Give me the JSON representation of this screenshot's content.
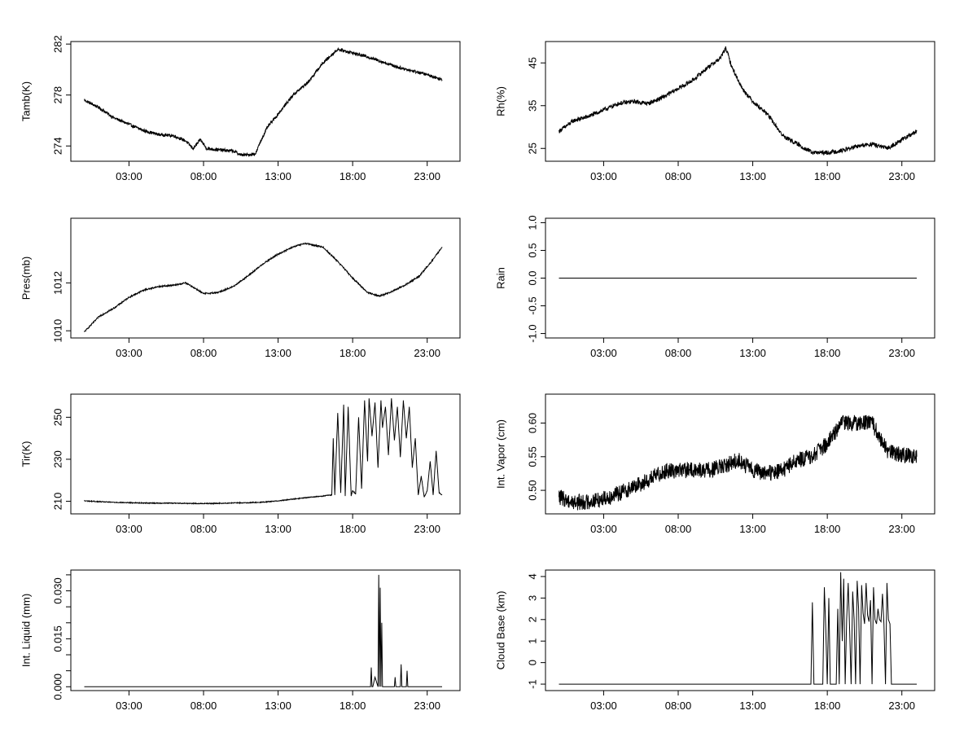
{
  "chart_data": [
    {
      "type": "line",
      "id": "tamb",
      "ylabel": "Tamb(K)",
      "x_tick_labels": [
        "03:00",
        "08:00",
        "13:00",
        "18:00",
        "23:00"
      ],
      "x_tick_hours": [
        3,
        8,
        13,
        18,
        23
      ],
      "xlim": [
        -0.9,
        25.2
      ],
      "ylim": [
        272.8,
        282.2
      ],
      "y_tick_values": [
        274,
        278,
        282
      ],
      "y_tick_labels": [
        "274",
        "278",
        "282"
      ],
      "noise": 0.12,
      "x": [
        0.0,
        1.0,
        2.0,
        3.0,
        4.0,
        5.0,
        6.0,
        6.8,
        7.3,
        7.8,
        8.2,
        9.0,
        10.0,
        10.5,
        11.0,
        11.5,
        11.8,
        12.3,
        13.0,
        14.0,
        15.0,
        16.0,
        17.0,
        18.0,
        19.0,
        20.0,
        21.0,
        22.0,
        23.0,
        24.0
      ],
      "y": [
        277.6,
        277.0,
        276.2,
        275.7,
        275.2,
        274.9,
        274.8,
        274.4,
        273.8,
        274.5,
        273.8,
        273.7,
        273.6,
        273.3,
        273.3,
        273.4,
        274.3,
        275.5,
        276.5,
        278.0,
        279.0,
        280.5,
        281.6,
        281.3,
        281.0,
        280.6,
        280.2,
        279.9,
        279.6,
        279.2
      ]
    },
    {
      "type": "line",
      "id": "rh",
      "ylabel": "Rh(%)",
      "x_tick_labels": [
        "03:00",
        "08:00",
        "13:00",
        "18:00",
        "23:00"
      ],
      "x_tick_hours": [
        3,
        8,
        13,
        18,
        23
      ],
      "xlim": [
        -0.9,
        25.2
      ],
      "ylim": [
        22,
        50
      ],
      "y_tick_values": [
        25,
        35,
        45
      ],
      "y_tick_labels": [
        "25",
        "35",
        "45"
      ],
      "noise": 0.5,
      "x": [
        0.0,
        1.0,
        2.0,
        3.0,
        4.0,
        5.0,
        6.0,
        7.0,
        8.0,
        9.0,
        10.0,
        10.8,
        11.2,
        11.6,
        12.3,
        13.0,
        14.0,
        15.0,
        16.0,
        17.0,
        18.0,
        19.0,
        20.0,
        21.0,
        22.0,
        23.0,
        24.0
      ],
      "y": [
        29.0,
        31.5,
        32.5,
        34.0,
        35.5,
        36.0,
        35.5,
        37.0,
        39.0,
        41.0,
        44.0,
        46.0,
        48.5,
        44.0,
        39.0,
        36.0,
        33.0,
        28.0,
        26.0,
        24.0,
        24.0,
        24.5,
        25.5,
        26.0,
        25.0,
        27.0,
        29.0
      ]
    },
    {
      "type": "line",
      "id": "pres",
      "ylabel": "Pres(mb)",
      "x_tick_labels": [
        "03:00",
        "08:00",
        "13:00",
        "18:00",
        "23:00"
      ],
      "x_tick_hours": [
        3,
        8,
        13,
        18,
        23
      ],
      "xlim": [
        -0.9,
        25.2
      ],
      "ylim": [
        1009.7,
        1014.7
      ],
      "y_tick_values": [
        1010,
        1012
      ],
      "y_tick_labels": [
        "1010",
        "1012"
      ],
      "noise": 0.03,
      "x": [
        0.0,
        1.0,
        2.0,
        3.0,
        4.0,
        5.0,
        6.0,
        6.8,
        7.5,
        8.0,
        9.0,
        10.0,
        11.0,
        12.0,
        13.0,
        14.0,
        14.8,
        16.0,
        17.0,
        18.0,
        19.0,
        19.8,
        20.5,
        21.5,
        22.5,
        23.3,
        24.0
      ],
      "y": [
        1009.95,
        1010.6,
        1010.95,
        1011.4,
        1011.7,
        1011.85,
        1011.9,
        1012.0,
        1011.75,
        1011.55,
        1011.6,
        1011.85,
        1012.3,
        1012.8,
        1013.2,
        1013.5,
        1013.65,
        1013.5,
        1012.9,
        1012.2,
        1011.6,
        1011.45,
        1011.6,
        1011.9,
        1012.3,
        1012.9,
        1013.5
      ]
    },
    {
      "type": "line",
      "id": "rain",
      "ylabel": "Rain",
      "x_tick_labels": [
        "03:00",
        "08:00",
        "13:00",
        "18:00",
        "23:00"
      ],
      "x_tick_hours": [
        3,
        8,
        13,
        18,
        23
      ],
      "xlim": [
        -0.9,
        25.2
      ],
      "ylim": [
        -1.08,
        1.08
      ],
      "y_tick_values": [
        -1.0,
        -0.5,
        0.0,
        0.5,
        1.0
      ],
      "y_tick_labels": [
        "-1.0",
        "-0.5",
        "0.0",
        "0.5",
        "1.0"
      ],
      "noise": 0,
      "x": [
        0.0,
        24.0
      ],
      "y": [
        0.0,
        0.0
      ]
    },
    {
      "type": "line",
      "id": "tir",
      "ylabel": "Tir(K)",
      "x_tick_labels": [
        "03:00",
        "08:00",
        "13:00",
        "18:00",
        "23:00"
      ],
      "x_tick_hours": [
        3,
        8,
        13,
        18,
        23
      ],
      "xlim": [
        -0.9,
        25.2
      ],
      "ylim": [
        204,
        261
      ],
      "y_tick_values": [
        210,
        230,
        250
      ],
      "y_tick_labels": [
        "210",
        "230",
        "250"
      ],
      "noise": 0.2,
      "x": [
        0.0,
        1.0,
        2.0,
        3.0,
        4.0,
        5.0,
        6.0,
        7.0,
        8.0,
        9.0,
        10.0,
        11.0,
        12.0,
        13.0,
        14.0,
        15.0,
        16.0,
        16.6,
        16.7,
        16.8,
        17.0,
        17.2,
        17.4,
        17.5,
        17.7,
        17.9,
        18.0,
        18.2,
        18.4,
        18.6,
        18.8,
        19.0,
        19.1,
        19.3,
        19.5,
        19.7,
        19.9,
        20.0,
        20.2,
        20.4,
        20.6,
        20.8,
        21.0,
        21.2,
        21.4,
        21.6,
        21.8,
        22.0,
        22.2,
        22.4,
        22.6,
        22.8,
        23.0,
        23.2,
        23.4,
        23.6,
        23.8,
        24.0
      ],
      "y": [
        210.2,
        209.8,
        209.5,
        209.3,
        209.2,
        209.1,
        209.1,
        209.0,
        208.9,
        209.0,
        209.2,
        209.3,
        209.6,
        210.2,
        211.0,
        211.8,
        212.5,
        213.0,
        240.0,
        213.0,
        252.0,
        214.0,
        256.0,
        212.5,
        255.0,
        212.5,
        215.0,
        213.5,
        250.0,
        216.0,
        258.0,
        229.0,
        259.0,
        241.0,
        257.0,
        226.0,
        258.0,
        245.0,
        255.0,
        232.0,
        259.0,
        239.0,
        255.0,
        231.0,
        258.0,
        240.0,
        255.0,
        226.0,
        240.0,
        213.0,
        222.0,
        212.0,
        215.0,
        229.0,
        213.0,
        234.0,
        214.0,
        213.0
      ]
    },
    {
      "type": "line",
      "id": "vapor",
      "ylabel": "Int. Vapor (cm)",
      "x_tick_labels": [
        "03:00",
        "08:00",
        "13:00",
        "18:00",
        "23:00"
      ],
      "x_tick_hours": [
        3,
        8,
        13,
        18,
        23
      ],
      "xlim": [
        -0.9,
        25.2
      ],
      "ylim": [
        0.465,
        0.643
      ],
      "y_tick_values": [
        0.5,
        0.55,
        0.6
      ],
      "y_tick_labels": [
        "0.50",
        "0.55",
        "0.60"
      ],
      "noise": 0.012,
      "x": [
        0.0,
        1.0,
        2.0,
        3.0,
        4.0,
        5.0,
        6.0,
        7.0,
        8.0,
        9.0,
        10.0,
        11.0,
        12.0,
        13.0,
        14.0,
        15.0,
        16.0,
        17.0,
        18.0,
        19.0,
        20.0,
        21.0,
        22.0,
        23.0,
        24.0
      ],
      "y": [
        0.49,
        0.482,
        0.483,
        0.488,
        0.495,
        0.505,
        0.515,
        0.528,
        0.53,
        0.53,
        0.53,
        0.535,
        0.545,
        0.53,
        0.525,
        0.53,
        0.545,
        0.55,
        0.57,
        0.6,
        0.6,
        0.6,
        0.56,
        0.552,
        0.55
      ]
    },
    {
      "type": "line",
      "id": "liquid",
      "ylabel": "Int. Liquid (mm)",
      "x_tick_labels": [
        "03:00",
        "08:00",
        "13:00",
        "18:00",
        "23:00"
      ],
      "x_tick_hours": [
        3,
        8,
        13,
        18,
        23
      ],
      "xlim": [
        -0.9,
        25.2
      ],
      "ylim": [
        -0.0012,
        0.0365
      ],
      "y_tick_values": [
        0.0,
        0.005,
        0.01,
        0.015,
        0.02,
        0.025,
        0.03,
        0.035
      ],
      "y_tick_labels": [
        "0.000",
        "",
        "",
        "0.015",
        "",
        "",
        "0.030",
        ""
      ],
      "noise": 0,
      "x": [
        0.0,
        19.2,
        19.25,
        19.3,
        19.35,
        19.5,
        19.7,
        19.75,
        19.8,
        19.85,
        19.9,
        19.95,
        20.0,
        20.8,
        20.85,
        20.9,
        21.0,
        21.2,
        21.25,
        21.3,
        21.35,
        21.6,
        21.65,
        21.7,
        21.75,
        24.0
      ],
      "y": [
        0.0,
        0.0,
        0.006,
        0.0,
        0.0,
        0.003,
        0.0,
        0.035,
        0.0,
        0.031,
        0.0,
        0.02,
        0.0,
        0.0,
        0.003,
        0.0,
        0.0,
        0.0,
        0.007,
        0.0,
        0.0,
        0.0,
        0.005,
        0.0,
        0.0,
        0.0
      ]
    },
    {
      "type": "line",
      "id": "cloudbase",
      "ylabel": "Cloud Base (km)",
      "x_tick_labels": [
        "03:00",
        "08:00",
        "13:00",
        "18:00",
        "23:00"
      ],
      "x_tick_hours": [
        3,
        8,
        13,
        18,
        23
      ],
      "xlim": [
        -0.9,
        25.2
      ],
      "ylim": [
        -1.3,
        4.3
      ],
      "y_tick_values": [
        -1,
        0,
        1,
        2,
        3,
        4
      ],
      "y_tick_labels": [
        "-1",
        "0",
        "1",
        "2",
        "3",
        "4"
      ],
      "noise": 0,
      "x": [
        0.0,
        16.9,
        17.0,
        17.1,
        17.7,
        17.8,
        17.9,
        18.0,
        18.1,
        18.2,
        18.6,
        18.7,
        18.8,
        18.9,
        19.0,
        19.1,
        19.2,
        19.3,
        19.4,
        19.5,
        19.6,
        19.7,
        19.8,
        19.9,
        20.0,
        20.1,
        20.2,
        20.3,
        20.4,
        20.5,
        20.6,
        20.7,
        20.8,
        20.9,
        21.0,
        21.1,
        21.2,
        21.3,
        21.4,
        21.5,
        21.6,
        21.7,
        21.8,
        21.9,
        22.0,
        22.1,
        22.2,
        22.3,
        22.4,
        24.0
      ],
      "y": [
        -1.0,
        -1.0,
        2.8,
        -1.0,
        -1.0,
        3.5,
        1.5,
        -1.0,
        3.0,
        -1.0,
        -1.0,
        2.5,
        -1.0,
        4.2,
        1.0,
        3.9,
        -1.0,
        2.0,
        3.7,
        1.5,
        -1.0,
        3.3,
        2.0,
        -1.0,
        3.8,
        2.5,
        -1.0,
        3.6,
        2.3,
        1.8,
        3.7,
        2.2,
        1.9,
        2.9,
        -1.0,
        3.5,
        2.0,
        1.8,
        2.5,
        2.0,
        1.9,
        3.2,
        1.8,
        -1.0,
        3.7,
        2.0,
        1.8,
        -1.0,
        -1.0,
        -1.0
      ]
    }
  ]
}
